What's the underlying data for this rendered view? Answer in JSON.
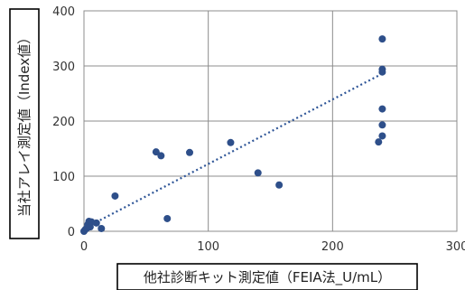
{
  "chart_data": {
    "type": "scatter",
    "xlabel": "他社診断キット測定値（FEIA法_U/mL）",
    "ylabel": "当社アレイ測定値（Index値）",
    "xlim": [
      0,
      300
    ],
    "ylim": [
      0,
      400
    ],
    "xticks": [
      "0",
      "100",
      "200",
      "300"
    ],
    "yticks": [
      "0",
      "100",
      "200",
      "300",
      "400"
    ],
    "grid": true,
    "legend": "none",
    "colors": {
      "points": "#2e4f8a",
      "trend": "#2e5597",
      "grid": "#8c8c8c"
    },
    "trendline": {
      "style": "dotted",
      "from": [
        0,
        5
      ],
      "to": [
        240,
        286
      ]
    },
    "points": [
      [
        0,
        0
      ],
      [
        1,
        3
      ],
      [
        2,
        5
      ],
      [
        3,
        12
      ],
      [
        4,
        18
      ],
      [
        5,
        8
      ],
      [
        6,
        17
      ],
      [
        10,
        15
      ],
      [
        14,
        5
      ],
      [
        25,
        64
      ],
      [
        58,
        144
      ],
      [
        62,
        137
      ],
      [
        67,
        23
      ],
      [
        85,
        143
      ],
      [
        118,
        161
      ],
      [
        140,
        106
      ],
      [
        157,
        84
      ],
      [
        237,
        162
      ],
      [
        240,
        349
      ],
      [
        240,
        294
      ],
      [
        240,
        289
      ],
      [
        240,
        222
      ],
      [
        240,
        193
      ],
      [
        240,
        173
      ]
    ]
  }
}
